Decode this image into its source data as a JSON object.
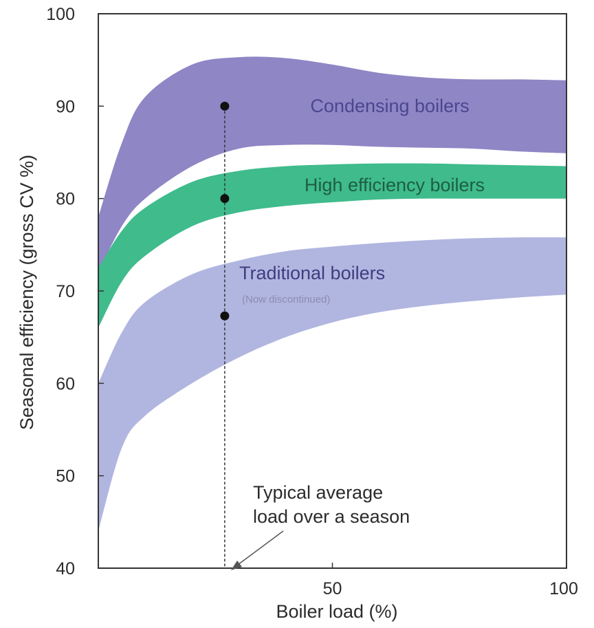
{
  "chart_data": {
    "type": "area",
    "xlabel": "Boiler load (%)",
    "ylabel": "Seasonal efficiency (gross CV %)",
    "xlim": [
      0,
      100
    ],
    "ylim": [
      40,
      100
    ],
    "xticks": [
      50,
      100
    ],
    "yticks": [
      40,
      50,
      60,
      70,
      80,
      90,
      100
    ],
    "grid": false,
    "series": [
      {
        "name": "Condensing boilers",
        "color": "#8f86c5",
        "label_color": "#4b4690",
        "x": [
          0,
          5,
          10,
          20,
          30,
          40,
          50,
          60,
          70,
          80,
          90,
          100
        ],
        "upper": [
          78,
          86,
          91,
          94.5,
          95.3,
          95.2,
          94.5,
          93.6,
          93.1,
          92.9,
          92.9,
          92.8
        ],
        "lower": [
          72,
          77,
          80,
          83.5,
          85.4,
          85.8,
          85.8,
          85.6,
          85.5,
          85.4,
          85.1,
          84.9
        ]
      },
      {
        "name": "High efficiency boilers",
        "color": "#3fbb8c",
        "label_color": "#1d5e45",
        "x": [
          0,
          5,
          10,
          20,
          30,
          40,
          50,
          60,
          70,
          80,
          90,
          100
        ],
        "upper": [
          72.5,
          76.5,
          79,
          81.8,
          83,
          83.5,
          83.7,
          83.8,
          83.8,
          83.7,
          83.6,
          83.5
        ],
        "lower": [
          66,
          71,
          73.8,
          77,
          78.5,
          79.2,
          79.6,
          79.9,
          80,
          80,
          80,
          80
        ]
      },
      {
        "name": "Traditional boilers",
        "sublabel": "(Now discontinued)",
        "color": "#b1b6e0",
        "label_color": "#3f3d80",
        "x": [
          0,
          5,
          10,
          20,
          30,
          40,
          50,
          60,
          70,
          80,
          90,
          100
        ],
        "upper": [
          60,
          65.5,
          68.8,
          71.8,
          73.3,
          74.3,
          74.8,
          75.2,
          75.5,
          75.7,
          75.8,
          75.8
        ],
        "lower": [
          44,
          53,
          56.5,
          60,
          62.8,
          65,
          66.6,
          67.7,
          68.4,
          68.9,
          69.3,
          69.6
        ]
      }
    ],
    "points": [
      {
        "x": 27,
        "y": 90
      },
      {
        "x": 27,
        "y": 80
      },
      {
        "x": 27,
        "y": 67.3
      }
    ],
    "reference_x": 27,
    "annotation": {
      "line1": "Typical average",
      "line2": "load over a season"
    }
  }
}
